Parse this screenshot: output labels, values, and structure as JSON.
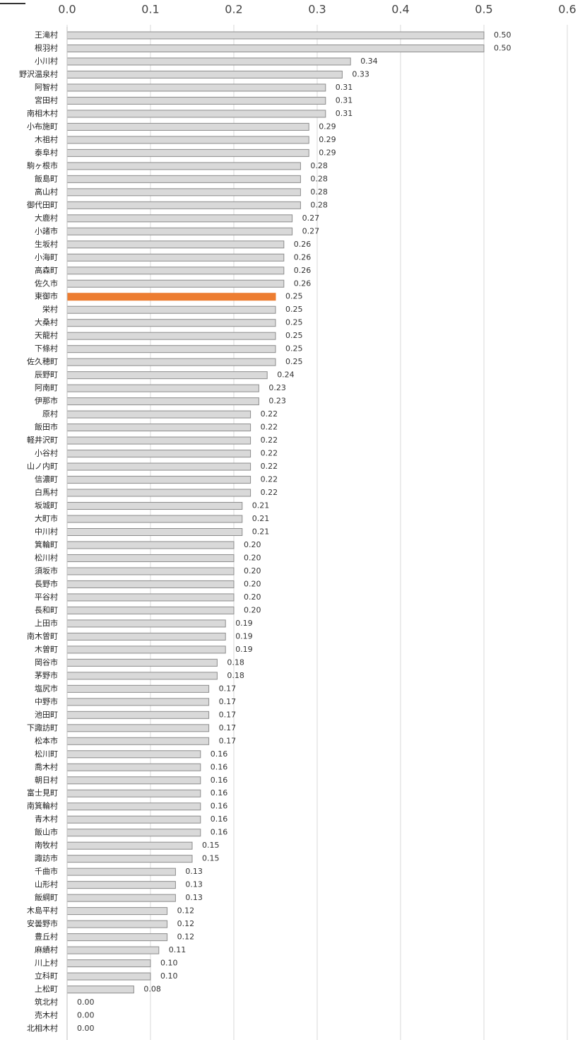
{
  "chart_data": {
    "type": "barh",
    "categories": [
      "王滝村",
      "根羽村",
      "小川村",
      "野沢温泉村",
      "阿智村",
      "宮田村",
      "南相木村",
      "小布施町",
      "木祖村",
      "泰阜村",
      "駒ヶ根市",
      "飯島町",
      "高山村",
      "御代田町",
      "大鹿村",
      "小諸市",
      "生坂村",
      "小海町",
      "高森町",
      "佐久市",
      "東御市",
      "栄村",
      "大桑村",
      "天龍村",
      "下條村",
      "佐久穂町",
      "辰野町",
      "阿南町",
      "伊那市",
      "原村",
      "飯田市",
      "軽井沢町",
      "小谷村",
      "山ノ内町",
      "信濃町",
      "白馬村",
      "坂城町",
      "大町市",
      "中川村",
      "箕輪町",
      "松川村",
      "須坂市",
      "長野市",
      "平谷村",
      "長和町",
      "上田市",
      "南木曽町",
      "木曽町",
      "岡谷市",
      "茅野市",
      "塩尻市",
      "中野市",
      "池田町",
      "下諏訪町",
      "松本市",
      "松川町",
      "喬木村",
      "朝日村",
      "富士見町",
      "南箕輪村",
      "青木村",
      "飯山市",
      "南牧村",
      "諏訪市",
      "千曲市",
      "山形村",
      "飯綱町",
      "木島平村",
      "安曇野市",
      "豊丘村",
      "麻績村",
      "川上村",
      "立科町",
      "上松町",
      "筑北村",
      "売木村",
      "北相木村"
    ],
    "values": [
      0.5,
      0.5,
      0.34,
      0.33,
      0.31,
      0.31,
      0.31,
      0.29,
      0.29,
      0.29,
      0.28,
      0.28,
      0.28,
      0.28,
      0.27,
      0.27,
      0.26,
      0.26,
      0.26,
      0.26,
      0.25,
      0.25,
      0.25,
      0.25,
      0.25,
      0.25,
      0.24,
      0.23,
      0.23,
      0.22,
      0.22,
      0.22,
      0.22,
      0.22,
      0.22,
      0.22,
      0.21,
      0.21,
      0.21,
      0.2,
      0.2,
      0.2,
      0.2,
      0.2,
      0.2,
      0.19,
      0.19,
      0.19,
      0.18,
      0.18,
      0.17,
      0.17,
      0.17,
      0.17,
      0.17,
      0.16,
      0.16,
      0.16,
      0.16,
      0.16,
      0.16,
      0.16,
      0.15,
      0.15,
      0.13,
      0.13,
      0.13,
      0.12,
      0.12,
      0.12,
      0.11,
      0.1,
      0.1,
      0.08,
      0,
      0,
      0
    ],
    "value_labels": [
      "0.50",
      "0.50",
      "0.34",
      "0.33",
      "0.31",
      "0.31",
      "0.31",
      "0.29",
      "0.29",
      "0.29",
      "0.28",
      "0.28",
      "0.28",
      "0.28",
      "0.27",
      "0.27",
      "0.26",
      "0.26",
      "0.26",
      "0.26",
      "0.25",
      "0.25",
      "0.25",
      "0.25",
      "0.25",
      "0.25",
      "0.24",
      "0.23",
      "0.23",
      "0.22",
      "0.22",
      "0.22",
      "0.22",
      "0.22",
      "0.22",
      "0.22",
      "0.21",
      "0.21",
      "0.21",
      "0.20",
      "0.20",
      "0.20",
      "0.20",
      "0.20",
      "0.20",
      "0.19",
      "0.19",
      "0.19",
      "0.18",
      "0.18",
      "0.17",
      "0.17",
      "0.17",
      "0.17",
      "0.17",
      "0.16",
      "0.16",
      "0.16",
      "0.16",
      "0.16",
      "0.16",
      "0.16",
      "0.15",
      "0.15",
      "0.13",
      "0.13",
      "0.13",
      "0.12",
      "0.12",
      "0.12",
      "0.11",
      "0.10",
      "0.10",
      "0.08",
      "0.00",
      "0.00",
      "0.00"
    ],
    "colors": [
      "#d9d9d9",
      "#d9d9d9",
      "#d9d9d9",
      "#d9d9d9",
      "#d9d9d9",
      "#d9d9d9",
      "#d9d9d9",
      "#d9d9d9",
      "#d9d9d9",
      "#d9d9d9",
      "#d9d9d9",
      "#d9d9d9",
      "#d9d9d9",
      "#d9d9d9",
      "#d9d9d9",
      "#d9d9d9",
      "#d9d9d9",
      "#d9d9d9",
      "#d9d9d9",
      "#d9d9d9",
      "#ed7d31",
      "#d9d9d9",
      "#d9d9d9",
      "#d9d9d9",
      "#d9d9d9",
      "#d9d9d9",
      "#d9d9d9",
      "#d9d9d9",
      "#d9d9d9",
      "#d9d9d9",
      "#d9d9d9",
      "#d9d9d9",
      "#d9d9d9",
      "#d9d9d9",
      "#d9d9d9",
      "#d9d9d9",
      "#d9d9d9",
      "#d9d9d9",
      "#d9d9d9",
      "#d9d9d9",
      "#d9d9d9",
      "#d9d9d9",
      "#d9d9d9",
      "#d9d9d9",
      "#d9d9d9",
      "#d9d9d9",
      "#d9d9d9",
      "#d9d9d9",
      "#d9d9d9",
      "#d9d9d9",
      "#d9d9d9",
      "#d9d9d9",
      "#d9d9d9",
      "#d9d9d9",
      "#d9d9d9",
      "#d9d9d9",
      "#d9d9d9",
      "#d9d9d9",
      "#d9d9d9",
      "#d9d9d9",
      "#d9d9d9",
      "#d9d9d9",
      "#d9d9d9",
      "#d9d9d9",
      "#d9d9d9",
      "#d9d9d9",
      "#d9d9d9",
      "#d9d9d9",
      "#d9d9d9",
      "#d9d9d9",
      "#d9d9d9",
      "#d9d9d9",
      "#d9d9d9",
      "#d9d9d9",
      "#d9d9d9",
      "#d9d9d9",
      "#d9d9d9"
    ],
    "xlim": [
      0,
      0.6
    ],
    "xticks": [
      {
        "value": 0,
        "label": "0.0"
      },
      0.1,
      0.2,
      0.3,
      0.4,
      0.5,
      0.6
    ],
    "grid": true
  }
}
